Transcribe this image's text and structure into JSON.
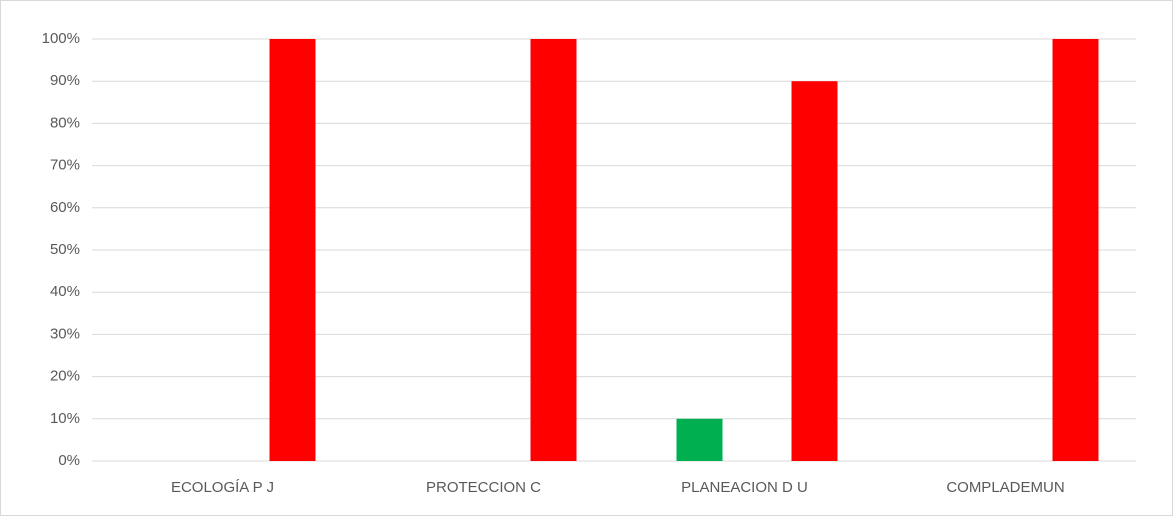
{
  "chart_data": {
    "type": "bar",
    "categories": [
      "ECOLOGÍA P J",
      "PROTECCION C",
      "PLANEACION D U",
      "COMPLADEMUN"
    ],
    "series": [
      {
        "color": "#00b050",
        "values": [
          0,
          0,
          10,
          0
        ]
      },
      {
        "color": "#ff0000",
        "values": [
          100,
          100,
          90,
          100
        ]
      }
    ],
    "ylim": [
      0,
      100
    ],
    "yticks": [
      {
        "value": 0,
        "label": "0%"
      },
      {
        "value": 10,
        "label": "10%"
      },
      {
        "value": 20,
        "label": "20%"
      },
      {
        "value": 30,
        "label": "30%"
      },
      {
        "value": 40,
        "label": "40%"
      },
      {
        "value": 50,
        "label": "50%"
      },
      {
        "value": 60,
        "label": "60%"
      },
      {
        "value": 70,
        "label": "70%"
      },
      {
        "value": 80,
        "label": "80%"
      },
      {
        "value": 90,
        "label": "90%"
      },
      {
        "value": 100,
        "label": "100%"
      }
    ],
    "grid": true
  }
}
